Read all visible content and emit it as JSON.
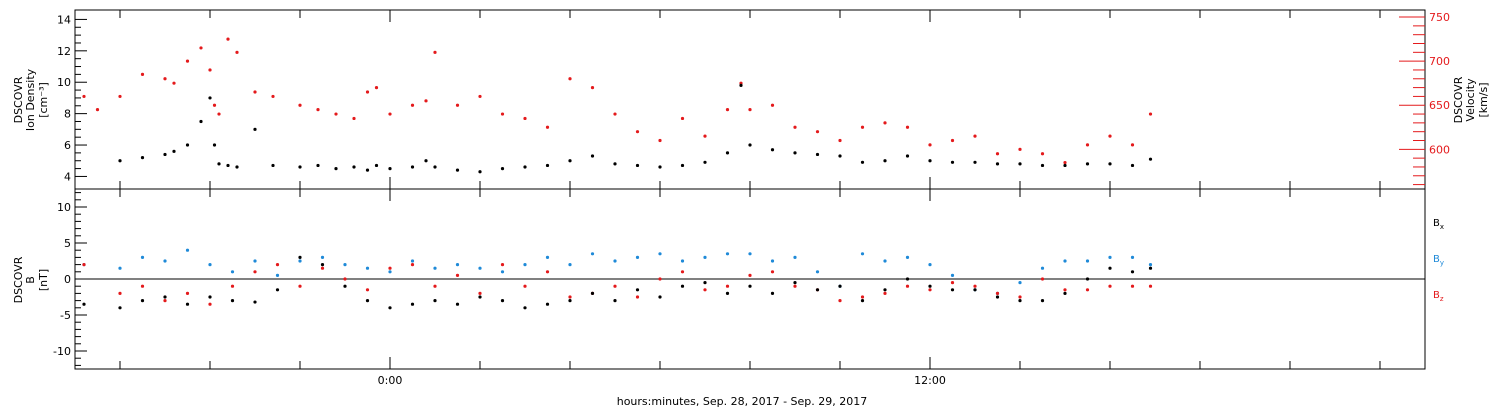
{
  "colors": {
    "black": "#000000",
    "red": "#e41a1c",
    "blue": "#1f8ad8"
  },
  "chart_data": [
    {
      "type": "scatter",
      "panel": "top",
      "ylabel_left": [
        "DSCOVR",
        "Ion Density",
        "[cm⁻³]"
      ],
      "ylabel_right": [
        "DSCOVR",
        "Velocity",
        "[km/s]"
      ],
      "y_left_ticks": [
        "4",
        "6",
        "8",
        "10",
        "12",
        "14"
      ],
      "y_right_ticks": [
        "600",
        "650",
        "700",
        "750"
      ],
      "ylim_left": [
        3.2,
        14.6
      ],
      "ylim_right": [
        555,
        758
      ],
      "series": [
        {
          "name": "Ion Density",
          "axis": "left",
          "color": "black",
          "x": [
            -6.0,
            -5.5,
            -5.0,
            -4.8,
            -4.5,
            -4.2,
            -4.0,
            -3.9,
            -3.8,
            -3.6,
            -3.4,
            -3.0,
            -2.6,
            -2.0,
            -1.6,
            -1.2,
            -0.8,
            -0.5,
            -0.3,
            0.0,
            0.5,
            0.8,
            1.0,
            1.5,
            2.0,
            2.5,
            3.0,
            3.5,
            4.0,
            4.5,
            5.0,
            5.5,
            6.0,
            6.5,
            7.0,
            7.5,
            7.8,
            8.0,
            8.5,
            9.0,
            9.5,
            10.0,
            10.5,
            11.0,
            11.5,
            12.0,
            12.5,
            13.0,
            13.5,
            14.0,
            14.5,
            15.0,
            15.5,
            16.0,
            16.5,
            16.9
          ],
          "y": [
            5.0,
            5.2,
            5.4,
            5.6,
            6.0,
            7.5,
            9.0,
            6.0,
            4.8,
            4.7,
            4.6,
            7.0,
            4.7,
            4.6,
            4.7,
            4.5,
            4.6,
            4.4,
            4.7,
            4.5,
            4.6,
            5.0,
            4.6,
            4.4,
            4.3,
            4.5,
            4.6,
            4.7,
            5.0,
            5.3,
            4.8,
            4.7,
            4.6,
            4.7,
            4.9,
            5.5,
            9.8,
            6.0,
            5.7,
            5.5,
            5.4,
            5.3,
            4.9,
            5.0,
            5.3,
            5.0,
            4.9,
            4.9,
            4.8,
            4.8,
            4.7,
            4.7,
            4.8,
            4.8,
            4.7,
            5.1
          ]
        },
        {
          "name": "Velocity",
          "axis": "right",
          "color": "red",
          "x": [
            -6.8,
            -6.5,
            -6.0,
            -5.5,
            -5.0,
            -4.8,
            -4.5,
            -4.2,
            -4.0,
            -3.9,
            -3.8,
            -3.6,
            -3.4,
            -3.0,
            -2.6,
            -2.0,
            -1.6,
            -1.2,
            -0.8,
            -0.5,
            -0.3,
            0.0,
            0.5,
            0.8,
            1.0,
            1.5,
            2.0,
            2.5,
            3.0,
            3.5,
            4.0,
            4.5,
            5.0,
            5.5,
            6.0,
            6.5,
            7.0,
            7.5,
            7.8,
            8.0,
            8.5,
            9.0,
            9.5,
            10.0,
            10.5,
            11.0,
            11.5,
            12.0,
            12.5,
            13.0,
            13.5,
            14.0,
            14.5,
            15.0,
            15.5,
            16.0,
            16.5,
            16.9
          ],
          "y": [
            660,
            645,
            660,
            685,
            680,
            675,
            700,
            715,
            690,
            650,
            640,
            725,
            710,
            665,
            660,
            650,
            645,
            640,
            635,
            665,
            670,
            640,
            650,
            655,
            710,
            650,
            660,
            640,
            635,
            625,
            680,
            670,
            640,
            620,
            610,
            635,
            615,
            645,
            675,
            645,
            650,
            625,
            620,
            610,
            625,
            630,
            625,
            605,
            610,
            615,
            595,
            600,
            595,
            585,
            605,
            615,
            605,
            640
          ]
        }
      ]
    },
    {
      "type": "scatter",
      "panel": "bottom",
      "ylabel_left": [
        "DSCOVR",
        "B",
        "[nT]"
      ],
      "y_ticks": [
        "-10",
        "-5",
        "0",
        "5",
        "10"
      ],
      "ylim": [
        -12.5,
        12.5
      ],
      "xlabel": "hours:minutes, Sep. 28, 2017 - Sep. 29, 2017",
      "x_ticks": [
        "0:00",
        "12:00"
      ],
      "xlim": [
        -7.0,
        23.0
      ],
      "series": [
        {
          "name": "B",
          "subscript": "x",
          "color": "black",
          "x": [
            -6.8,
            -6.0,
            -5.5,
            -5.0,
            -4.5,
            -4.0,
            -3.5,
            -3.0,
            -2.5,
            -2.0,
            -1.5,
            -1.0,
            -0.5,
            0.0,
            0.5,
            1.0,
            1.5,
            2.0,
            2.5,
            3.0,
            3.5,
            4.0,
            4.5,
            5.0,
            5.5,
            6.0,
            6.5,
            7.0,
            7.5,
            8.0,
            8.5,
            9.0,
            9.5,
            10.0,
            10.5,
            11.0,
            11.5,
            12.0,
            12.5,
            13.0,
            13.5,
            14.0,
            14.5,
            15.0,
            15.5,
            16.0,
            16.5,
            16.9
          ],
          "y": [
            -3.5,
            -4.0,
            -3.0,
            -2.5,
            -3.5,
            -2.5,
            -3.0,
            -3.2,
            -1.5,
            3.0,
            2.0,
            -1.0,
            -3.0,
            -4.0,
            -3.5,
            -3.0,
            -3.5,
            -2.5,
            -3.0,
            -4.0,
            -3.5,
            -3.0,
            -2.0,
            -3.0,
            -1.5,
            -2.5,
            -1.0,
            -0.5,
            -2.0,
            -1.0,
            -2.0,
            -0.5,
            -1.5,
            -1.0,
            -3.0,
            -1.5,
            0.0,
            -1.0,
            -1.5,
            -1.5,
            -2.5,
            -3.0,
            -3.0,
            -2.0,
            0.0,
            1.5,
            1.0,
            1.5
          ]
        },
        {
          "name": "B",
          "subscript": "y",
          "color": "blue",
          "x": [
            -6.8,
            -6.0,
            -5.5,
            -5.0,
            -4.5,
            -4.0,
            -3.5,
            -3.0,
            -2.5,
            -2.0,
            -1.5,
            -1.0,
            -0.5,
            0.0,
            0.5,
            1.0,
            1.5,
            2.0,
            2.5,
            3.0,
            3.5,
            4.0,
            4.5,
            5.0,
            5.5,
            6.0,
            6.5,
            7.0,
            7.5,
            8.0,
            8.5,
            9.0,
            9.5,
            10.0,
            10.5,
            11.0,
            11.5,
            12.0,
            12.5,
            13.0,
            13.5,
            14.0,
            14.5,
            15.0,
            15.5,
            16.0,
            16.5,
            16.9
          ],
          "y": [
            2.0,
            1.5,
            3.0,
            2.5,
            4.0,
            2.0,
            1.0,
            2.5,
            0.5,
            2.5,
            3.0,
            2.0,
            1.5,
            1.0,
            2.5,
            1.5,
            2.0,
            1.5,
            1.0,
            2.0,
            3.0,
            2.0,
            3.5,
            2.5,
            3.0,
            3.5,
            2.5,
            3.0,
            3.5,
            3.5,
            2.5,
            3.0,
            1.0,
            -1.0,
            3.5,
            2.5,
            3.0,
            2.0,
            0.5,
            -1.5,
            -2.0,
            -0.5,
            1.5,
            2.5,
            2.5,
            3.0,
            3.0,
            2.0
          ]
        },
        {
          "name": "B",
          "subscript": "z",
          "color": "red",
          "x": [
            -6.8,
            -6.0,
            -5.5,
            -5.0,
            -4.5,
            -4.0,
            -3.5,
            -3.0,
            -2.5,
            -2.0,
            -1.5,
            -1.0,
            -0.5,
            0.0,
            0.5,
            1.0,
            1.5,
            2.0,
            2.5,
            3.0,
            3.5,
            4.0,
            4.5,
            5.0,
            5.5,
            6.0,
            6.5,
            7.0,
            7.5,
            8.0,
            8.5,
            9.0,
            9.5,
            10.0,
            10.5,
            11.0,
            11.5,
            12.0,
            12.5,
            13.0,
            13.5,
            14.0,
            14.5,
            15.0,
            15.5,
            16.0,
            16.5,
            16.9
          ],
          "y": [
            2.0,
            -2.0,
            -1.0,
            -3.0,
            -2.0,
            -3.5,
            -1.0,
            1.0,
            2.0,
            -1.0,
            1.5,
            0.0,
            -1.5,
            1.5,
            2.0,
            -1.0,
            0.5,
            -2.0,
            2.0,
            -1.0,
            1.0,
            -2.5,
            -2.0,
            -1.0,
            -2.5,
            0.0,
            1.0,
            -1.5,
            -1.0,
            0.5,
            1.0,
            -1.0,
            -1.5,
            -3.0,
            -2.5,
            -2.0,
            -1.0,
            -1.5,
            -0.5,
            -1.0,
            -2.0,
            -2.5,
            0.0,
            -1.5,
            -1.5,
            -1.0,
            -1.0,
            -1.0
          ]
        }
      ]
    }
  ]
}
